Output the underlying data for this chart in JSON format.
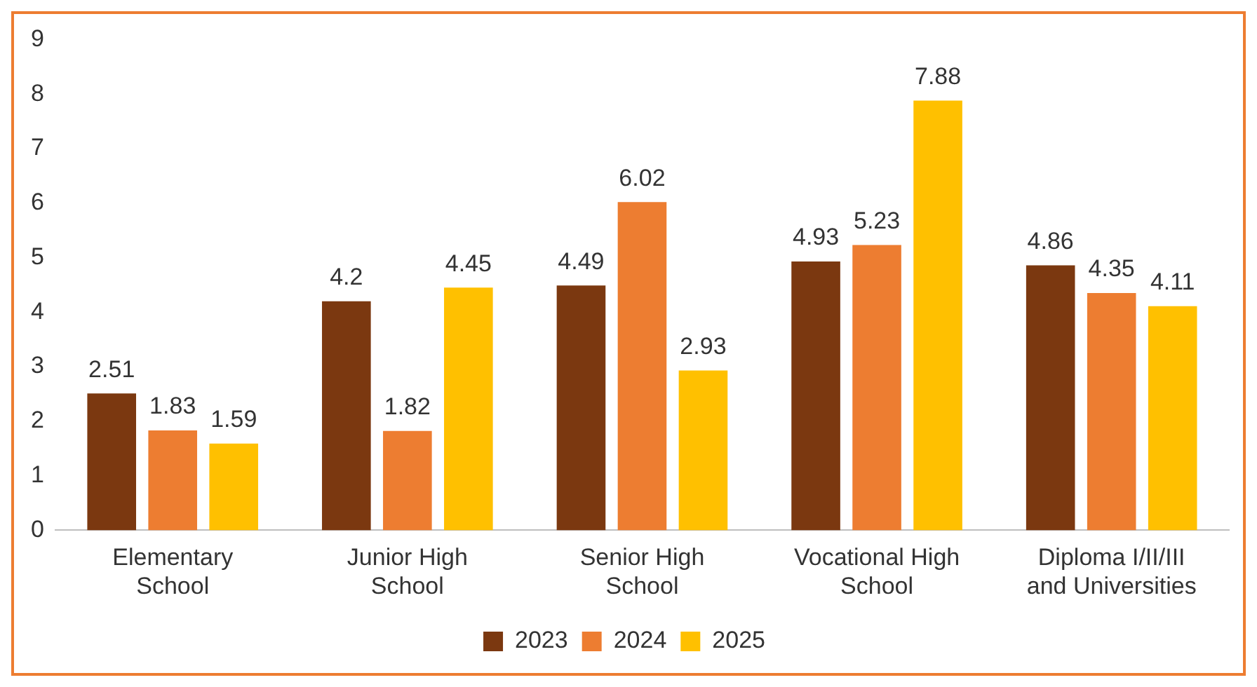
{
  "chart_data": {
    "type": "bar",
    "categories": [
      "Elementary School",
      "Junior High School",
      "Senior High School",
      "Vocational High School",
      "Diploma I/II/III and Universities"
    ],
    "series": [
      {
        "name": "2023",
        "color": "#7b3810",
        "values": [
          2.51,
          4.2,
          4.49,
          4.93,
          4.86
        ]
      },
      {
        "name": "2024",
        "color": "#ed7d31",
        "values": [
          1.83,
          1.82,
          6.02,
          5.23,
          4.35
        ]
      },
      {
        "name": "2025",
        "color": "#ffc000",
        "values": [
          1.59,
          4.45,
          2.93,
          7.88,
          4.11
        ]
      }
    ],
    "ylim": [
      0,
      9
    ],
    "yticks": [
      0,
      1,
      2,
      3,
      4,
      5,
      6,
      7,
      8,
      9
    ],
    "grid": false,
    "legend": "bottom",
    "data_labels": true
  }
}
